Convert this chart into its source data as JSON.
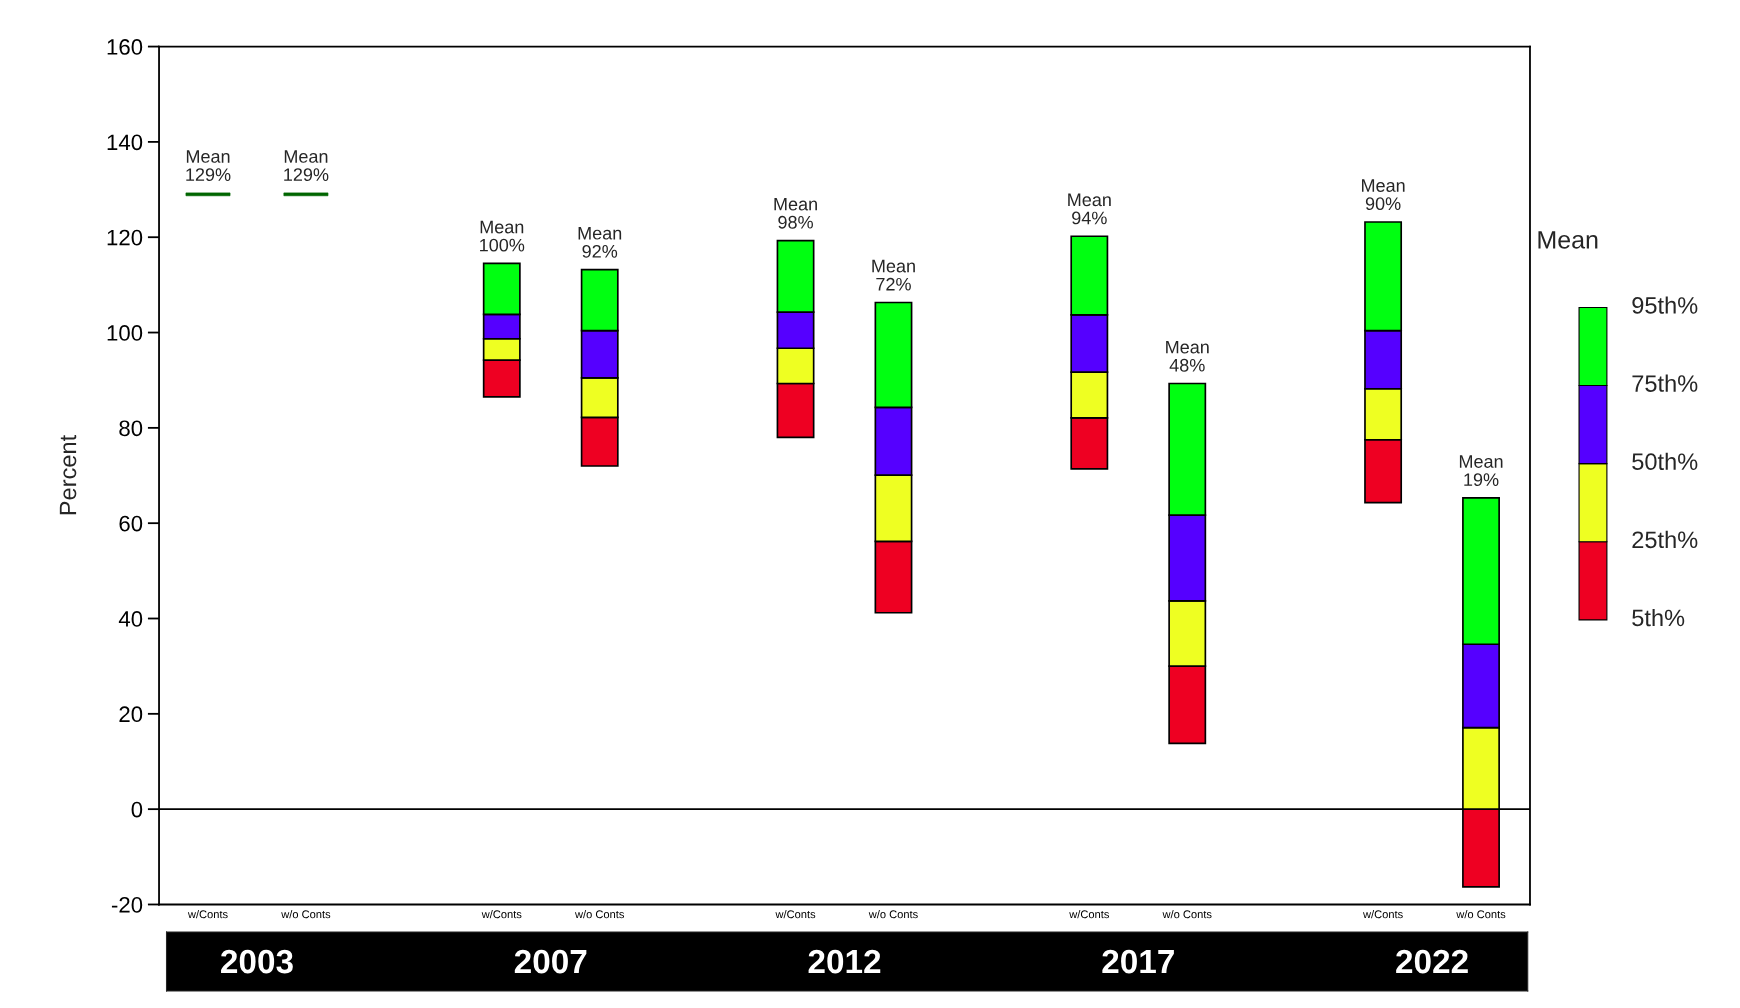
{
  "chart_data": {
    "type": "bar",
    "ylabel": "Percent",
    "categories": [
      "w/Conts",
      "w/o Conts",
      null,
      "w/Conts",
      "w/o Conts",
      null,
      "w/Conts",
      "w/o Conts",
      null,
      "w/Conts",
      "w/o Conts",
      null,
      "w/Conts",
      "w/o Conts"
    ],
    "series": [
      {
        "color": "#ee0022",
        "base": [
          null,
          null,
          null,
          86.5,
          72.0,
          null,
          78.0,
          41.2,
          null,
          71.4,
          13.8,
          null,
          64.3,
          -16.3
        ],
        "values": [
          null,
          null,
          null,
          7.7,
          10.2,
          null,
          11.3,
          15.0,
          null,
          10.7,
          16.2,
          null,
          13.2,
          16.3
        ]
      },
      {
        "color": "#eeff22",
        "base": [
          null,
          null,
          null,
          94.2,
          82.2,
          null,
          89.3,
          56.2,
          null,
          82.1,
          30.0,
          null,
          77.5,
          0.0
        ],
        "values": [
          null,
          null,
          null,
          4.5,
          8.3,
          null,
          7.4,
          13.9,
          null,
          9.6,
          13.7,
          null,
          10.7,
          17.1
        ]
      },
      {
        "color": "#5500ff",
        "base": [
          null,
          null,
          null,
          98.7,
          90.5,
          null,
          96.7,
          70.1,
          null,
          91.7,
          43.7,
          null,
          88.2,
          17.1
        ],
        "values": [
          null,
          null,
          null,
          5.1,
          9.9,
          null,
          7.6,
          14.2,
          null,
          12.0,
          18.0,
          null,
          12.2,
          17.5
        ]
      },
      {
        "color": "#00ff11",
        "base": [
          null,
          null,
          null,
          103.8,
          100.4,
          null,
          104.3,
          84.3,
          null,
          103.7,
          61.7,
          null,
          100.4,
          34.6
        ],
        "values": [
          null,
          null,
          null,
          10.7,
          12.8,
          null,
          15.0,
          22.0,
          null,
          16.5,
          27.6,
          null,
          22.8,
          30.7
        ]
      },
      {
        "color": "#006600",
        "base": [
          128.7,
          128.7,
          null,
          null,
          null,
          null,
          null,
          null,
          null,
          null,
          null,
          null,
          null,
          null
        ],
        "values": [
          0.6,
          0.6,
          null,
          null,
          null,
          null,
          null,
          null,
          null,
          null,
          null,
          null,
          null,
          null
        ]
      }
    ],
    "ylim": [
      -20,
      160
    ],
    "yticks": [
      -20,
      0,
      20,
      40,
      60,
      80,
      100,
      120,
      140,
      160
    ],
    "ref_lines": [
      {
        "axis": "y",
        "value": 0,
        "color": "#000000"
      }
    ],
    "annotations": [
      "Mean\n129%",
      "Mean\n129%",
      "Mean\n100%",
      "Mean\n92%",
      "Mean\n98%",
      "Mean\n72%",
      "Mean\n94%",
      "Mean\n48%",
      "Mean\n90%",
      "Mean\n19%",
      "Mean",
      "5th%",
      "25th%",
      "50th%",
      "75th%",
      "95th%",
      "2003",
      "2007",
      "2012",
      "2017",
      "2022"
    ],
    "grid": false
  }
}
